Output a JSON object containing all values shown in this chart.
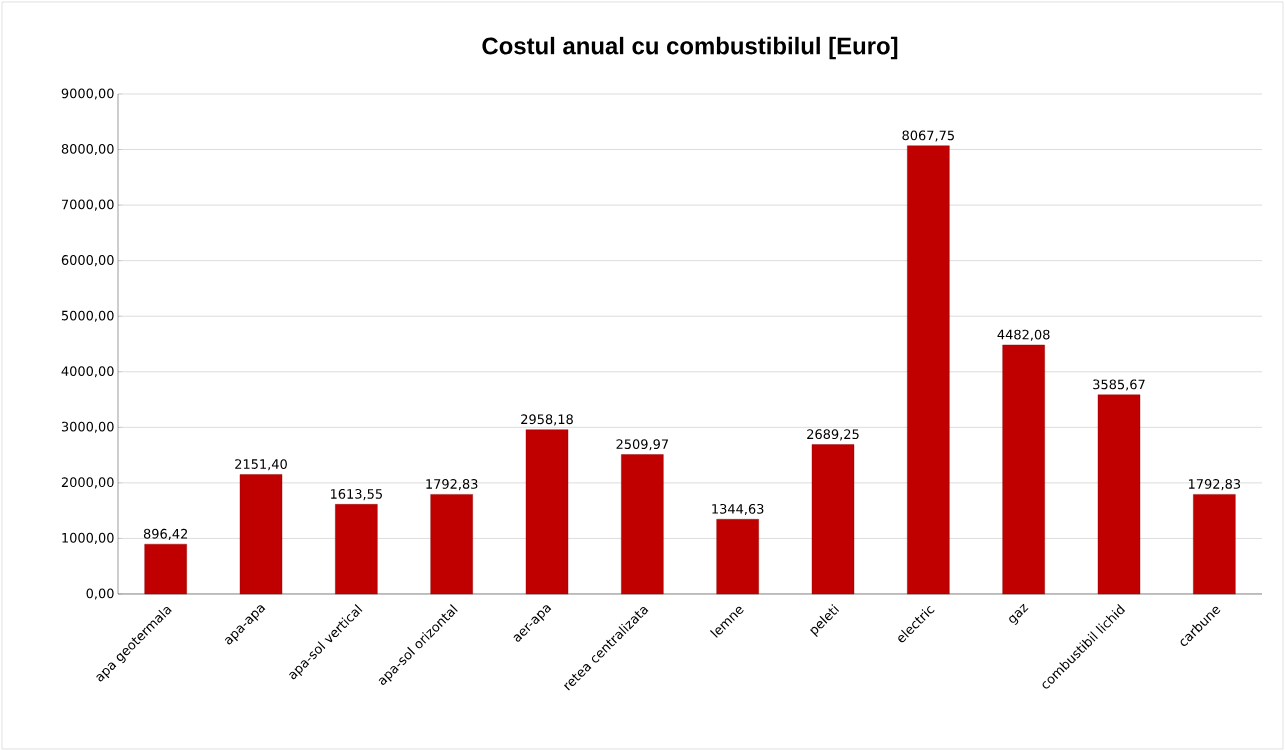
{
  "chart_data": {
    "type": "bar",
    "title": "Costul anual  cu combustibilul  [Euro]",
    "categories": [
      "apa geotermala",
      "apa-apa",
      "apa-sol vertical",
      "apa-sol orizontal",
      "aer-apa",
      "retea centralizata",
      "lemne",
      "peleti",
      "electric",
      "gaz",
      "combustibil lichid",
      "carbune"
    ],
    "values": [
      896.42,
      2151.4,
      1613.55,
      1792.83,
      2958.18,
      2509.97,
      1344.63,
      2689.25,
      8067.75,
      4482.08,
      3585.67,
      1792.83
    ],
    "value_labels": [
      "896,42",
      "2151,40",
      "1613,55",
      "1792,83",
      "2958,18",
      "2509,97",
      "1344,63",
      "2689,25",
      "8067,75",
      "4482,08",
      "3585,67",
      "1792,83"
    ],
    "color": "#c00000",
    "ylim": [
      0,
      9000
    ],
    "yticks": [
      {
        "value": 0,
        "label": "0,00"
      },
      {
        "value": 1000,
        "label": "1000,00"
      },
      {
        "value": 2000,
        "label": "2000,00"
      },
      {
        "value": 3000,
        "label": "3000,00"
      },
      {
        "value": 4000,
        "label": "4000,00"
      },
      {
        "value": 5000,
        "label": "5000,00"
      },
      {
        "value": 6000,
        "label": "6000,00"
      },
      {
        "value": 7000,
        "label": "7000,00"
      },
      {
        "value": 8000,
        "label": "8000,00"
      },
      {
        "value": 9000,
        "label": "9000,00"
      }
    ],
    "grid": "y"
  }
}
